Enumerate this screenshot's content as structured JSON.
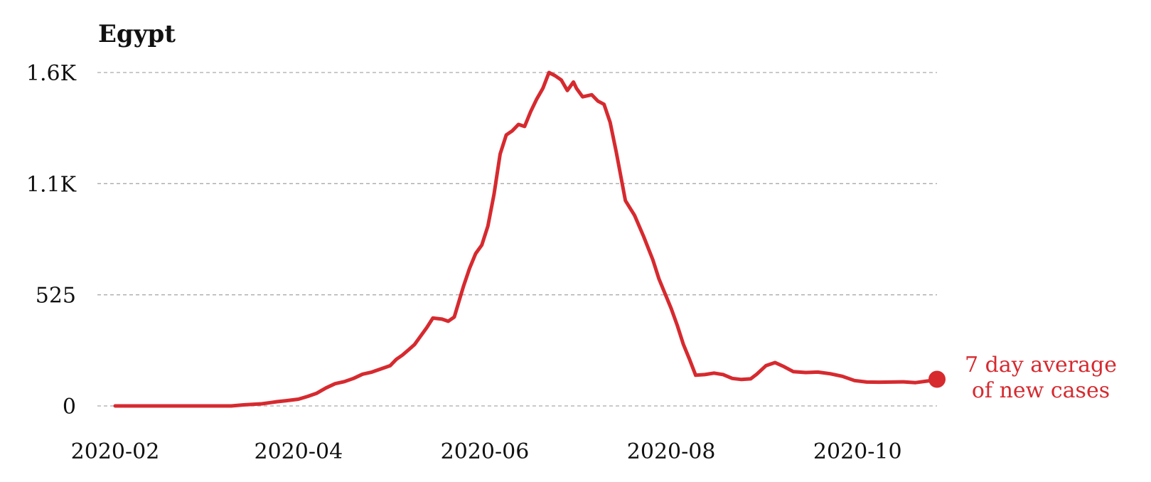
{
  "chart_data": {
    "type": "line",
    "title": "Egypt",
    "xlabel": "",
    "ylabel": "",
    "x_ticks": [
      {
        "date": "2020-02-01",
        "label": "2020-02"
      },
      {
        "date": "2020-04-01",
        "label": "2020-04"
      },
      {
        "date": "2020-06-01",
        "label": "2020-06"
      },
      {
        "date": "2020-08-01",
        "label": "2020-08"
      },
      {
        "date": "2020-10-01",
        "label": "2020-10"
      }
    ],
    "y_ticks": [
      {
        "value": 0,
        "label": "0"
      },
      {
        "value": 525,
        "label": "525"
      },
      {
        "value": 1050,
        "label": "1.1K"
      },
      {
        "value": 1575,
        "label": "1.6K"
      }
    ],
    "ylim": [
      0,
      1575
    ],
    "xlim": [
      "2020-02-01",
      "2020-10-27"
    ],
    "grid": "horizontal dashed",
    "color": "#d62a2f",
    "annotation": {
      "lines": [
        "7 day average",
        "of new cases"
      ]
    },
    "series": [
      {
        "points": [
          [
            "2020-02-01",
            0
          ],
          [
            "2020-02-15",
            0
          ],
          [
            "2020-03-01",
            0
          ],
          [
            "2020-03-10",
            0
          ],
          [
            "2020-03-14",
            5
          ],
          [
            "2020-03-20",
            10
          ],
          [
            "2020-03-25",
            20
          ],
          [
            "2020-03-28",
            25
          ],
          [
            "2020-04-01",
            32
          ],
          [
            "2020-04-04",
            45
          ],
          [
            "2020-04-07",
            60
          ],
          [
            "2020-04-10",
            85
          ],
          [
            "2020-04-13",
            105
          ],
          [
            "2020-04-16",
            115
          ],
          [
            "2020-04-19",
            130
          ],
          [
            "2020-04-22",
            150
          ],
          [
            "2020-04-25",
            160
          ],
          [
            "2020-04-28",
            175
          ],
          [
            "2020-05-01",
            190
          ],
          [
            "2020-05-03",
            220
          ],
          [
            "2020-05-05",
            240
          ],
          [
            "2020-05-07",
            265
          ],
          [
            "2020-05-09",
            290
          ],
          [
            "2020-05-11",
            330
          ],
          [
            "2020-05-13",
            370
          ],
          [
            "2020-05-15",
            415
          ],
          [
            "2020-05-18",
            410
          ],
          [
            "2020-05-20",
            400
          ],
          [
            "2020-05-22",
            420
          ],
          [
            "2020-05-25",
            565
          ],
          [
            "2020-05-27",
            650
          ],
          [
            "2020-05-29",
            720
          ],
          [
            "2020-05-31",
            760
          ],
          [
            "2020-06-02",
            850
          ],
          [
            "2020-06-04",
            1000
          ],
          [
            "2020-06-06",
            1190
          ],
          [
            "2020-06-08",
            1280
          ],
          [
            "2020-06-10",
            1300
          ],
          [
            "2020-06-12",
            1330
          ],
          [
            "2020-06-14",
            1320
          ],
          [
            "2020-06-16",
            1390
          ],
          [
            "2020-06-18",
            1450
          ],
          [
            "2020-06-20",
            1500
          ],
          [
            "2020-06-22",
            1575
          ],
          [
            "2020-06-24",
            1560
          ],
          [
            "2020-06-26",
            1540
          ],
          [
            "2020-06-28",
            1490
          ],
          [
            "2020-06-30",
            1530
          ],
          [
            "2020-07-01",
            1500
          ],
          [
            "2020-07-03",
            1460
          ],
          [
            "2020-07-06",
            1470
          ],
          [
            "2020-07-08",
            1440
          ],
          [
            "2020-07-10",
            1425
          ],
          [
            "2020-07-12",
            1340
          ],
          [
            "2020-07-14",
            1200
          ],
          [
            "2020-07-17",
            970
          ],
          [
            "2020-07-20",
            900
          ],
          [
            "2020-07-23",
            800
          ],
          [
            "2020-07-26",
            690
          ],
          [
            "2020-07-28",
            600
          ],
          [
            "2020-07-30",
            530
          ],
          [
            "2020-08-01",
            460
          ],
          [
            "2020-08-03",
            380
          ],
          [
            "2020-08-05",
            290
          ],
          [
            "2020-08-07",
            220
          ],
          [
            "2020-08-09",
            145
          ],
          [
            "2020-08-12",
            148
          ],
          [
            "2020-08-15",
            155
          ],
          [
            "2020-08-18",
            148
          ],
          [
            "2020-08-21",
            130
          ],
          [
            "2020-08-24",
            125
          ],
          [
            "2020-08-27",
            128
          ],
          [
            "2020-08-29",
            150
          ],
          [
            "2020-09-01",
            190
          ],
          [
            "2020-09-04",
            205
          ],
          [
            "2020-09-07",
            185
          ],
          [
            "2020-09-10",
            162
          ],
          [
            "2020-09-14",
            158
          ],
          [
            "2020-09-18",
            160
          ],
          [
            "2020-09-22",
            152
          ],
          [
            "2020-09-26",
            140
          ],
          [
            "2020-09-30",
            120
          ],
          [
            "2020-10-04",
            113
          ],
          [
            "2020-10-08",
            112
          ],
          [
            "2020-10-12",
            113
          ],
          [
            "2020-10-16",
            114
          ],
          [
            "2020-10-20",
            110
          ],
          [
            "2020-10-24",
            118
          ],
          [
            "2020-10-27",
            126
          ]
        ]
      }
    ]
  }
}
